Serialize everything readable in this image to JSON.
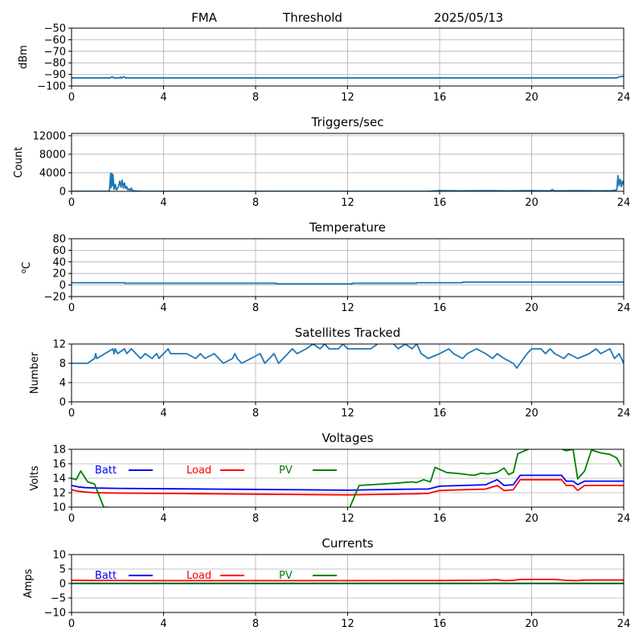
{
  "header": {
    "left": "FMA",
    "center": "Threshold",
    "right": "2025/05/13"
  },
  "chart_data": [
    {
      "type": "line",
      "title": "",
      "xlabel": "",
      "ylabel": "dBm",
      "xlim": [
        0,
        24
      ],
      "ylim": [
        -100,
        -50
      ],
      "xticks": [
        0,
        4,
        8,
        12,
        16,
        20,
        24
      ],
      "yticks": [
        -100,
        -90,
        -80,
        -70,
        -60,
        -50
      ],
      "ytick_labels": [
        "−100",
        "−90",
        "−80",
        "−70",
        "−60",
        "−50"
      ],
      "grid": true,
      "series": [
        {
          "color": "#1f77b4",
          "x": [
            0,
            1.7,
            1.72,
            1.8,
            1.82,
            2.1,
            2.12,
            2.15,
            2.2,
            2.22,
            2.3,
            2.32,
            23.7,
            23.85,
            24
          ],
          "y": [
            -93,
            -93,
            -92.2,
            -92.2,
            -93,
            -93,
            -92.2,
            -93,
            -93,
            -92.2,
            -92.2,
            -93,
            -93,
            -91.8,
            -91.8
          ]
        }
      ]
    },
    {
      "type": "line",
      "title": "Triggers/sec",
      "xlabel": "",
      "ylabel": "Count",
      "xlim": [
        0,
        24
      ],
      "ylim": [
        0,
        12500
      ],
      "xticks": [
        0,
        4,
        8,
        12,
        16,
        20,
        24
      ],
      "yticks": [
        0,
        4000,
        8000,
        12000
      ],
      "ytick_labels": [
        "0",
        "4000",
        "8000",
        "12000"
      ],
      "grid": true,
      "series": [
        {
          "color": "#1f77b4",
          "x": [
            0,
            1.6,
            1.65,
            1.7,
            1.72,
            1.75,
            1.78,
            1.8,
            1.85,
            1.9,
            1.95,
            2.0,
            2.05,
            2.1,
            2.15,
            2.2,
            2.25,
            2.3,
            2.35,
            2.4,
            2.45,
            2.5,
            2.55,
            2.6,
            2.65,
            2.7,
            3.0,
            15.5,
            16,
            17,
            18,
            19,
            20,
            20.8,
            20.9,
            21,
            22,
            23,
            23.5,
            23.7,
            23.75,
            23.8,
            23.85,
            23.9,
            23.95,
            24
          ],
          "y": [
            0,
            0,
            200,
            3900,
            800,
            3800,
            1200,
            3600,
            400,
            1500,
            300,
            600,
            1200,
            2200,
            900,
            2400,
            700,
            1800,
            600,
            1000,
            300,
            500,
            200,
            700,
            200,
            100,
            0,
            0,
            150,
            100,
            150,
            100,
            150,
            100,
            350,
            100,
            150,
            100,
            150,
            300,
            3400,
            1200,
            2600,
            1000,
            2200,
            1400
          ]
        }
      ]
    },
    {
      "type": "line",
      "title": "Temperature",
      "xlabel": "",
      "ylabel": "°C",
      "ylabel_prefix": "o",
      "ylabel_main": "C",
      "xlim": [
        0,
        24
      ],
      "ylim": [
        -20,
        80
      ],
      "xticks": [
        0,
        4,
        8,
        12,
        16,
        20,
        24
      ],
      "yticks": [
        -20,
        0,
        20,
        40,
        60,
        80
      ],
      "ytick_labels": [
        "−20",
        "0",
        "20",
        "40",
        "60",
        "80"
      ],
      "grid": true,
      "series": [
        {
          "color": "#1f77b4",
          "x": [
            0,
            2.3,
            2.3,
            8.9,
            8.9,
            12.2,
            12.2,
            15.0,
            15.0,
            17.0,
            17.0,
            24
          ],
          "y": [
            4,
            4,
            3,
            3,
            2,
            2,
            3,
            3,
            4,
            4,
            5,
            5
          ]
        }
      ]
    },
    {
      "type": "line",
      "title": "Satellites Tracked",
      "xlabel": "",
      "ylabel": "Number",
      "xlim": [
        0,
        24
      ],
      "ylim": [
        0,
        12
      ],
      "xticks": [
        0,
        4,
        8,
        12,
        16,
        20,
        24
      ],
      "yticks": [
        0,
        4,
        8,
        12
      ],
      "ytick_labels": [
        "0",
        "4",
        "8",
        "12"
      ],
      "grid": true,
      "series": [
        {
          "color": "#1f77b4",
          "x": [
            0,
            0.7,
            1.0,
            1.05,
            1.1,
            1.8,
            1.85,
            1.9,
            2.0,
            2.3,
            2.4,
            2.6,
            2.8,
            3.0,
            3.2,
            3.5,
            3.7,
            3.8,
            4.2,
            4.3,
            4.6,
            5.0,
            5.4,
            5.6,
            5.8,
            6.2,
            6.4,
            6.6,
            7.0,
            7.1,
            7.2,
            7.4,
            7.8,
            8.2,
            8.4,
            8.6,
            8.8,
            9.0,
            9.2,
            9.4,
            9.6,
            9.8,
            10.2,
            10.5,
            10.8,
            11.0,
            11.2,
            11.6,
            11.8,
            12.0,
            12.6,
            13.0,
            13.3,
            13.4,
            14.0,
            14.2,
            14.5,
            14.8,
            15.0,
            15.2,
            15.5,
            16.0,
            16.4,
            16.6,
            17.0,
            17.2,
            17.6,
            18.0,
            18.3,
            18.5,
            18.8,
            19.2,
            19.35,
            19.5,
            19.8,
            20.0,
            20.4,
            20.6,
            20.8,
            21.0,
            21.4,
            21.6,
            22.0,
            22.5,
            22.8,
            23.0,
            23.4,
            23.6,
            23.8,
            24
          ],
          "y": [
            8,
            8,
            9,
            10,
            9,
            11,
            10,
            11,
            10,
            11,
            10,
            11,
            10,
            9,
            10,
            9,
            10,
            9,
            11,
            10,
            10,
            10,
            9,
            10,
            9,
            10,
            9,
            8,
            9,
            10,
            9,
            8,
            9,
            10,
            8,
            9,
            10,
            8,
            9,
            10,
            11,
            10,
            11,
            12,
            11,
            12,
            11,
            11,
            12,
            11,
            11,
            11,
            12,
            13,
            12,
            11,
            12,
            11,
            12,
            10,
            9,
            10,
            11,
            10,
            9,
            10,
            11,
            10,
            9,
            10,
            9,
            8,
            7,
            8,
            10,
            11,
            11,
            10,
            11,
            10,
            9,
            10,
            9,
            10,
            11,
            10,
            11,
            9,
            10,
            8
          ]
        }
      ]
    },
    {
      "type": "line",
      "title": "Voltages",
      "xlabel": "",
      "ylabel": "Volts",
      "xlim": [
        0,
        24
      ],
      "ylim": [
        10,
        18
      ],
      "xticks": [
        0,
        4,
        8,
        12,
        16,
        20,
        24
      ],
      "yticks": [
        10,
        12,
        14,
        16,
        18
      ],
      "ytick_labels": [
        "10",
        "12",
        "14",
        "16",
        "18"
      ],
      "grid": true,
      "legend": [
        {
          "label": "Batt",
          "color": "#0000ff"
        },
        {
          "label": "Load",
          "color": "#ff0000"
        },
        {
          "label": "PV",
          "color": "#008000"
        }
      ],
      "series": [
        {
          "name": "Batt",
          "color": "#0000ff",
          "x": [
            0,
            0.3,
            0.6,
            1.0,
            2,
            4,
            6,
            8,
            10,
            12,
            13,
            14,
            15,
            15.5,
            16,
            17,
            18,
            18.5,
            18.8,
            19.2,
            19.5,
            20,
            21,
            21.3,
            21.5,
            21.8,
            22.0,
            22.3,
            23,
            24
          ],
          "y": [
            13.0,
            12.8,
            12.7,
            12.65,
            12.6,
            12.55,
            12.5,
            12.45,
            12.4,
            12.35,
            12.4,
            12.45,
            12.5,
            12.5,
            12.9,
            13.0,
            13.1,
            13.8,
            13.0,
            13.1,
            14.4,
            14.4,
            14.4,
            14.4,
            13.6,
            13.6,
            13.1,
            13.6,
            13.6,
            13.6
          ]
        },
        {
          "name": "Load",
          "color": "#ff0000",
          "x": [
            0,
            0.3,
            0.6,
            1.0,
            2,
            4,
            6,
            8,
            10,
            12,
            13,
            14,
            15,
            15.5,
            16,
            17,
            18,
            18.5,
            18.8,
            19.2,
            19.5,
            20,
            21,
            21.3,
            21.5,
            21.8,
            22.0,
            22.3,
            23,
            24
          ],
          "y": [
            12.4,
            12.2,
            12.1,
            12.0,
            11.95,
            11.9,
            11.85,
            11.8,
            11.75,
            11.7,
            11.75,
            11.8,
            11.85,
            11.9,
            12.3,
            12.4,
            12.5,
            13.0,
            12.3,
            12.4,
            13.8,
            13.8,
            13.8,
            13.8,
            13.0,
            13.0,
            12.3,
            13.0,
            13.0,
            13.0
          ]
        },
        {
          "name": "PV",
          "color": "#008000",
          "x": [
            0,
            0.2,
            0.4,
            0.7,
            0.9,
            1.0,
            1.2,
            1.4,
            11.9,
            12.1,
            12.5,
            13,
            14,
            14.8,
            15.0,
            15.3,
            15.6,
            15.8,
            16.3,
            17,
            17.2,
            17.5,
            17.8,
            18.1,
            18.5,
            18.8,
            19.0,
            19.2,
            19.4,
            20,
            21,
            21.5,
            21.8,
            22.0,
            22.3,
            22.6,
            23,
            23.4,
            23.7,
            23.9
          ],
          "y": [
            14.0,
            13.8,
            15.0,
            13.5,
            13.3,
            13.2,
            11.6,
            10.0,
            8.5,
            10.0,
            13.0,
            13.1,
            13.3,
            13.5,
            13.4,
            13.8,
            13.5,
            15.5,
            14.8,
            14.6,
            14.5,
            14.4,
            14.7,
            14.6,
            14.8,
            15.4,
            14.5,
            14.8,
            17.4,
            18.2,
            18.4,
            17.8,
            18.0,
            13.9,
            15.0,
            17.9,
            17.5,
            17.3,
            16.8,
            15.6
          ]
        }
      ]
    },
    {
      "type": "line",
      "title": "Currents",
      "xlabel": "",
      "ylabel": "Amps",
      "xlim": [
        0,
        24
      ],
      "ylim": [
        -10,
        10
      ],
      "xticks": [
        0,
        4,
        8,
        12,
        16,
        20,
        24
      ],
      "yticks": [
        -10,
        -5,
        0,
        5,
        10
      ],
      "ytick_labels": [
        "−10",
        "−5",
        "0",
        "5",
        "10"
      ],
      "grid": true,
      "legend": [
        {
          "label": "Batt",
          "color": "#0000ff"
        },
        {
          "label": "Load",
          "color": "#ff0000"
        },
        {
          "label": "PV",
          "color": "#008000"
        }
      ],
      "series": [
        {
          "name": "Batt",
          "color": "#0000ff",
          "x": [
            0,
            24
          ],
          "y": [
            0,
            0
          ]
        },
        {
          "name": "Load",
          "color": "#ff0000",
          "x": [
            0,
            4,
            8,
            12,
            16,
            17,
            18,
            18.5,
            18.8,
            19.2,
            19.5,
            20,
            21,
            21.5,
            22,
            22.3,
            23,
            24
          ],
          "y": [
            1.1,
            1.0,
            1.0,
            1.0,
            1.05,
            1.1,
            1.15,
            1.3,
            1.0,
            1.1,
            1.4,
            1.4,
            1.4,
            1.1,
            1.0,
            1.2,
            1.2,
            1.2
          ]
        },
        {
          "name": "PV",
          "color": "#008000",
          "x": [
            0,
            24
          ],
          "y": [
            0.1,
            0.1
          ]
        }
      ]
    }
  ]
}
